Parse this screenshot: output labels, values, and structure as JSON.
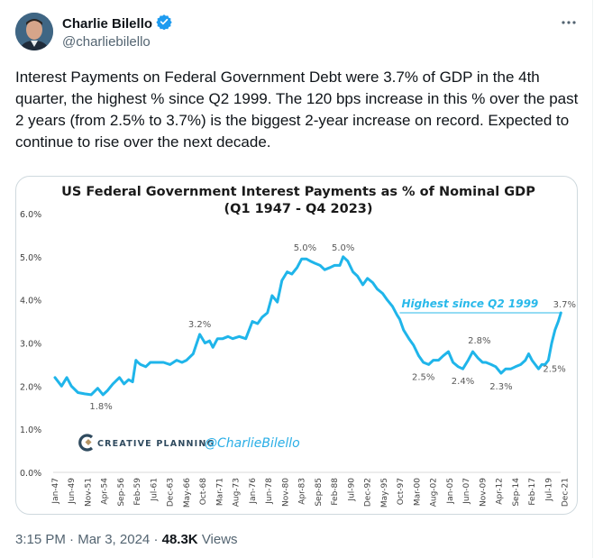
{
  "author": {
    "name": "Charlie Bilello",
    "handle": "@charliebilello",
    "verified": true,
    "verified_color": "#1d9bf0"
  },
  "tweet": {
    "text": "Interest Payments on Federal Government Debt were 3.7% of GDP in the 4th quarter, the highest % since Q2 1999. The 120 bps increase in this % over the past 2 years (from 2.5% to 3.7%) is the biggest 2-year increase on record. Expected to continue to rise over the next decade.",
    "time": "3:15 PM",
    "date": "Mar 3, 2024",
    "views_count": "48.3K",
    "views_label": "Views",
    "separator": "·"
  },
  "icons": {
    "more": "more-horizontal-icon",
    "verified": "verified-badge-icon"
  },
  "chart_data": {
    "type": "line",
    "title": "US Federal Government Interest Payments as % of Nominal GDP",
    "subtitle": "(Q1 1947 - Q4 2023)",
    "xlabel": "",
    "ylabel": "",
    "ylim": [
      0,
      6
    ],
    "yticks": [
      "0.0%",
      "1.0%",
      "2.0%",
      "3.0%",
      "4.0%",
      "5.0%",
      "6.0%"
    ],
    "xticks": [
      "Jan-47",
      "Jun-49",
      "Nov-51",
      "Apr-54",
      "Sep-56",
      "Feb-59",
      "Jul-61",
      "Dec-63",
      "May-66",
      "Oct-68",
      "Mar-71",
      "Aug-73",
      "Jan-76",
      "Jun-78",
      "Nov-80",
      "Apr-83",
      "Sep-85",
      "Feb-88",
      "Jul-90",
      "Dec-92",
      "May-95",
      "Oct-97",
      "Mar-00",
      "Aug-02",
      "Jan-05",
      "Jun-07",
      "Nov-09",
      "Apr-12",
      "Sep-14",
      "Feb-17",
      "Jul-19",
      "Dec-21"
    ],
    "grid": false,
    "line_color": "#1fb5ea",
    "series": [
      {
        "name": "Interest Payments % of GDP",
        "x": [
          1947.0,
          1948.0,
          1948.8,
          1949.5,
          1950.5,
          1951.5,
          1952.5,
          1953.5,
          1954.3,
          1955.0,
          1955.8,
          1956.8,
          1957.5,
          1958.2,
          1958.8,
          1959.3,
          1959.6,
          1960.0,
          1960.8,
          1961.5,
          1962.5,
          1963.5,
          1964.5,
          1965.5,
          1966.3,
          1967.0,
          1968.0,
          1969.0,
          1969.8,
          1970.5,
          1971.0,
          1971.7,
          1972.5,
          1973.3,
          1974.0,
          1975.0,
          1976.0,
          1977.0,
          1977.8,
          1978.5,
          1979.3,
          1980.0,
          1980.8,
          1981.5,
          1982.3,
          1983.0,
          1983.8,
          1984.5,
          1985.2,
          1985.8,
          1986.5,
          1987.3,
          1988.0,
          1988.8,
          1989.5,
          1990.3,
          1990.8,
          1991.5,
          1992.3,
          1993.0,
          1993.8,
          1994.5,
          1995.3,
          1996.0,
          1996.8,
          1997.5,
          1998.3,
          1999.0,
          1999.4,
          2000.0,
          2000.8,
          2001.5,
          2002.3,
          2003.0,
          2003.8,
          2004.5,
          2005.3,
          2006.0,
          2006.8,
          2007.5,
          2008.3,
          2009.0,
          2009.8,
          2010.5,
          2011.3,
          2012.0,
          2012.5,
          2013.3,
          2014.0,
          2014.8,
          2015.5,
          2016.3,
          2017.0,
          2017.8,
          2018.5,
          2019.0,
          2019.5,
          2020.0,
          2020.5,
          2021.0,
          2021.5,
          2022.0,
          2022.5,
          2023.0,
          2023.5,
          2023.9
        ],
        "values": [
          2.2,
          2.0,
          2.2,
          2.0,
          1.85,
          1.82,
          1.8,
          1.95,
          1.8,
          1.9,
          2.05,
          2.2,
          2.05,
          2.15,
          2.1,
          2.6,
          2.55,
          2.5,
          2.45,
          2.55,
          2.55,
          2.55,
          2.5,
          2.6,
          2.55,
          2.6,
          2.75,
          3.2,
          3.0,
          3.05,
          2.9,
          3.1,
          3.1,
          3.15,
          3.1,
          3.15,
          3.1,
          3.5,
          3.45,
          3.6,
          3.7,
          4.1,
          3.95,
          4.45,
          4.65,
          4.6,
          4.75,
          4.95,
          4.95,
          4.9,
          4.85,
          4.8,
          4.7,
          4.75,
          4.8,
          4.8,
          5.0,
          4.9,
          4.65,
          4.55,
          4.35,
          4.5,
          4.4,
          4.25,
          4.15,
          4.0,
          3.85,
          3.65,
          3.55,
          3.3,
          3.1,
          2.95,
          2.7,
          2.55,
          2.5,
          2.6,
          2.6,
          2.7,
          2.8,
          2.55,
          2.45,
          2.4,
          2.6,
          2.8,
          2.65,
          2.55,
          2.55,
          2.5,
          2.45,
          2.3,
          2.4,
          2.4,
          2.45,
          2.5,
          2.6,
          2.75,
          2.6,
          2.5,
          2.4,
          2.5,
          2.5,
          2.6,
          3.0,
          3.3,
          3.5,
          3.7
        ]
      }
    ],
    "annotations": [
      {
        "label": "1.8%",
        "x": 1954.0,
        "y": 1.8
      },
      {
        "label": "3.2%",
        "x": 1969.0,
        "y": 3.2
      },
      {
        "label": "5.0%",
        "x": 1985.0,
        "y": 5.0
      },
      {
        "label": "5.0%",
        "x": 1990.8,
        "y": 5.0
      },
      {
        "label": "2.5%",
        "x": 2003.0,
        "y": 2.5
      },
      {
        "label": "2.4%",
        "x": 2009.0,
        "y": 2.4
      },
      {
        "label": "2.8%",
        "x": 2011.5,
        "y": 2.8
      },
      {
        "label": "2.3%",
        "x": 2014.8,
        "y": 2.3
      },
      {
        "label": "2.5%",
        "x": 2021.0,
        "y": 2.5
      },
      {
        "label": "3.7%",
        "x": 2023.9,
        "y": 3.7
      }
    ],
    "reference_line": {
      "label": "Highest since Q2 1999",
      "y": 3.7,
      "x_start": 1999.4,
      "x_end": 2023.9
    },
    "watermark": {
      "brand": "CREATIVE PLANNING",
      "handle": "@CharlieBilello"
    }
  }
}
